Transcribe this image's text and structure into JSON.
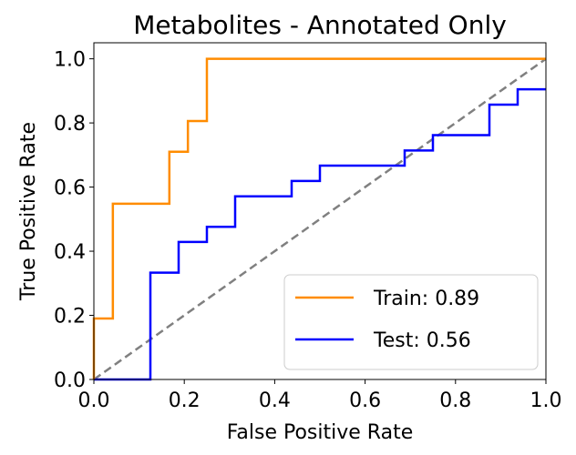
{
  "chart_data": {
    "type": "line",
    "title": "Metabolites - Annotated Only",
    "xlabel": "False Positive Rate",
    "ylabel": "True Positive Rate",
    "xlim": [
      0.0,
      1.0
    ],
    "ylim": [
      0.0,
      1.05
    ],
    "x_ticks": [
      "0.0",
      "0.2",
      "0.4",
      "0.6",
      "0.8",
      "1.0"
    ],
    "y_ticks": [
      "0.0",
      "0.2",
      "0.4",
      "0.6",
      "0.8",
      "1.0"
    ],
    "grid": false,
    "legend_position": "lower-right",
    "series": [
      {
        "name": "Train: 0.89",
        "color": "#ff8c00",
        "x": [
          0.0,
          0.0,
          0.042,
          0.042,
          0.167,
          0.167,
          0.208,
          0.208,
          0.25,
          0.25,
          1.0
        ],
        "y": [
          0.0,
          0.19,
          0.19,
          0.548,
          0.548,
          0.71,
          0.71,
          0.806,
          0.806,
          1.0,
          1.0
        ]
      },
      {
        "name": "Test: 0.56",
        "color": "#0000ff",
        "x": [
          0.0,
          0.125,
          0.125,
          0.1875,
          0.1875,
          0.25,
          0.25,
          0.3125,
          0.3125,
          0.4375,
          0.4375,
          0.5,
          0.5,
          0.6875,
          0.6875,
          0.75,
          0.75,
          0.875,
          0.875,
          0.9375,
          0.9375,
          1.0
        ],
        "y": [
          0.0,
          0.0,
          0.333,
          0.333,
          0.429,
          0.429,
          0.476,
          0.476,
          0.571,
          0.571,
          0.619,
          0.619,
          0.667,
          0.667,
          0.714,
          0.714,
          0.762,
          0.762,
          0.857,
          0.857,
          0.905,
          0.905
        ]
      }
    ],
    "reference_line": {
      "x": [
        0.0,
        1.0
      ],
      "y": [
        0.0,
        1.0
      ],
      "color": "#808080",
      "style": "dashed"
    }
  }
}
